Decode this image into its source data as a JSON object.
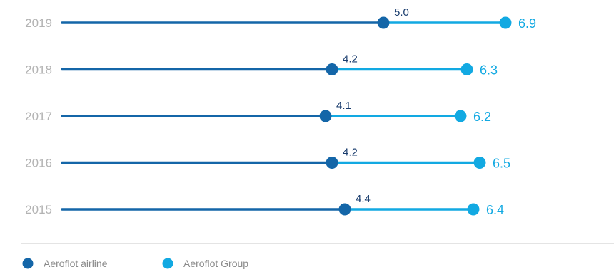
{
  "chart_data": {
    "type": "dumbbell",
    "categories": [
      "2019",
      "2018",
      "2017",
      "2016",
      "2015"
    ],
    "series": [
      {
        "name": "Aeroflot airline",
        "values": [
          5.0,
          4.2,
          4.1,
          4.2,
          4.4
        ],
        "labels": [
          "5.0",
          "4.2",
          "4.1",
          "4.2",
          "4.4"
        ],
        "color": "#1466a8"
      },
      {
        "name": "Aeroflot Group",
        "values": [
          6.9,
          6.3,
          6.2,
          6.5,
          6.4
        ],
        "labels": [
          "6.9",
          "6.3",
          "6.2",
          "6.5",
          "6.4"
        ],
        "color": "#12a9e2"
      }
    ],
    "xlim": [
      0,
      7.75
    ],
    "grid": false,
    "legend_position": "bottom-left"
  },
  "colors": {
    "dark_line": "#1466a8",
    "light_line": "#12a9e2",
    "year_text": "#b3b3b3",
    "divider": "#c8c8c8"
  }
}
